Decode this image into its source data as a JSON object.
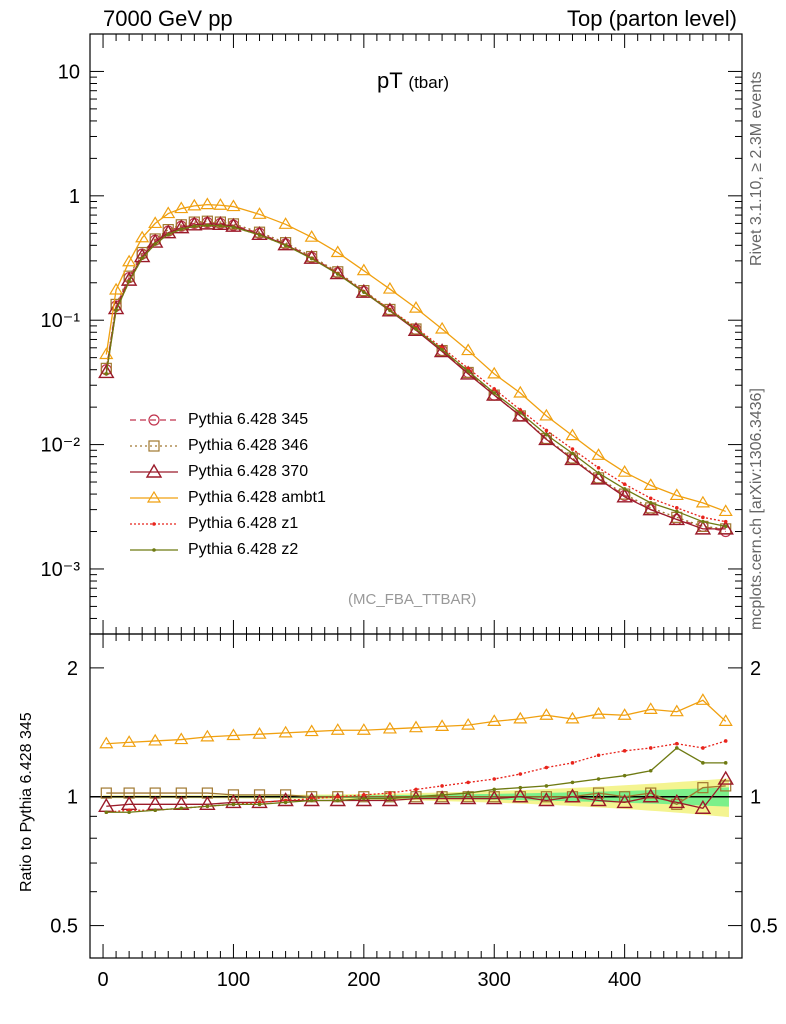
{
  "header": {
    "left": "7000 GeV pp",
    "right": "Top (parton level)"
  },
  "side_labels": {
    "rivet": "Rivet 3.1.10, ≥ 2.3M events",
    "mcplots": "mcplots.cern.ch [arXiv:1306.3436]"
  },
  "plot_title": {
    "main": "pT",
    "sub": "(tbar)"
  },
  "analysis_name": "(MC_FBA_TTBAR)",
  "colors": {
    "p345": "#c0334d",
    "p346": "#a07830",
    "p370": "#9b1b2a",
    "ambt1": "#f0a010",
    "z1": "#e8241c",
    "z2": "#6e7a12",
    "band_green": "#7cf08a",
    "band_yellow": "#f4f490"
  },
  "chart_data": [
    {
      "type": "line",
      "name": "main",
      "yscale": "log",
      "xlim": [
        -10,
        490
      ],
      "ylim": [
        0.0003,
        20
      ],
      "ytick_labels": [
        "10",
        "1",
        "10⁻¹",
        "10⁻²",
        "10⁻³"
      ],
      "ytick_values": [
        10,
        1,
        0.1,
        0.01,
        0.001
      ],
      "series": [
        {
          "name": "Pythia 6.428 345",
          "key": "p345",
          "marker": "circle",
          "dash": "6,4",
          "x": [
            2.5,
            10,
            20,
            30,
            40,
            50,
            60,
            70,
            80,
            90,
            100,
            120,
            140,
            160,
            180,
            200,
            220,
            240,
            260,
            280,
            300,
            320,
            340,
            360,
            380,
            400,
            420,
            440,
            460,
            477.5
          ],
          "y": [
            0.04,
            0.13,
            0.22,
            0.34,
            0.44,
            0.52,
            0.57,
            0.6,
            0.61,
            0.6,
            0.58,
            0.5,
            0.41,
            0.32,
            0.24,
            0.17,
            0.12,
            0.084,
            0.057,
            0.038,
            0.025,
            0.017,
            0.011,
            0.0077,
            0.0053,
            0.0039,
            0.003,
            0.0025,
            0.0022,
            0.002
          ]
        },
        {
          "name": "Pythia 6.428 346",
          "key": "p346",
          "marker": "square",
          "dash": "2,3",
          "x": [
            2.5,
            10,
            20,
            30,
            40,
            50,
            60,
            70,
            80,
            90,
            100,
            120,
            140,
            160,
            180,
            200,
            220,
            240,
            260,
            280,
            300,
            320,
            340,
            360,
            380,
            400,
            420,
            440,
            460,
            477.5
          ],
          "y": [
            0.041,
            0.134,
            0.226,
            0.35,
            0.45,
            0.535,
            0.585,
            0.615,
            0.625,
            0.615,
            0.595,
            0.51,
            0.42,
            0.325,
            0.245,
            0.173,
            0.122,
            0.085,
            0.057,
            0.038,
            0.025,
            0.017,
            0.0112,
            0.0078,
            0.0054,
            0.004,
            0.0031,
            0.0026,
            0.0022,
            0.0021
          ]
        },
        {
          "name": "Pythia 6.428 370",
          "key": "p370",
          "marker": "triangle",
          "dash": "",
          "x": [
            2.5,
            10,
            20,
            30,
            40,
            50,
            60,
            70,
            80,
            90,
            100,
            120,
            140,
            160,
            180,
            200,
            220,
            240,
            260,
            280,
            300,
            320,
            340,
            360,
            380,
            400,
            420,
            440,
            460,
            477.5
          ],
          "y": [
            0.038,
            0.124,
            0.21,
            0.325,
            0.425,
            0.505,
            0.555,
            0.585,
            0.595,
            0.59,
            0.57,
            0.49,
            0.405,
            0.315,
            0.237,
            0.168,
            0.119,
            0.083,
            0.056,
            0.037,
            0.025,
            0.017,
            0.011,
            0.0076,
            0.0053,
            0.0038,
            0.003,
            0.0025,
            0.0021,
            0.0021
          ]
        },
        {
          "name": "Pythia 6.428 ambt1",
          "key": "ambt1",
          "marker": "triangle-open-light",
          "dash": "",
          "x": [
            2.5,
            10,
            20,
            30,
            40,
            50,
            60,
            70,
            80,
            90,
            100,
            120,
            140,
            160,
            180,
            200,
            220,
            240,
            260,
            280,
            300,
            320,
            340,
            360,
            380,
            400,
            420,
            440,
            460,
            477.5
          ],
          "y": [
            0.053,
            0.175,
            0.295,
            0.46,
            0.6,
            0.72,
            0.79,
            0.83,
            0.85,
            0.84,
            0.82,
            0.71,
            0.59,
            0.465,
            0.35,
            0.25,
            0.178,
            0.125,
            0.085,
            0.057,
            0.037,
            0.026,
            0.017,
            0.0118,
            0.0082,
            0.006,
            0.0047,
            0.0039,
            0.0034,
            0.0029
          ]
        },
        {
          "name": "Pythia 6.428 z1",
          "key": "z1",
          "marker": "dot",
          "dash": "2,2",
          "x": [
            2.5,
            10,
            20,
            30,
            40,
            50,
            60,
            70,
            80,
            90,
            100,
            120,
            140,
            160,
            180,
            200,
            220,
            240,
            260,
            280,
            300,
            320,
            340,
            360,
            380,
            400,
            420,
            440,
            460,
            477.5
          ],
          "y": [
            0.037,
            0.12,
            0.205,
            0.315,
            0.41,
            0.49,
            0.54,
            0.57,
            0.58,
            0.575,
            0.56,
            0.485,
            0.4,
            0.315,
            0.238,
            0.17,
            0.122,
            0.087,
            0.06,
            0.041,
            0.028,
            0.019,
            0.013,
            0.0092,
            0.0065,
            0.0048,
            0.0037,
            0.0031,
            0.0026,
            0.0024
          ]
        },
        {
          "name": "Pythia 6.428 z2",
          "key": "z2",
          "marker": "dot",
          "dash": "",
          "x": [
            2.5,
            10,
            20,
            30,
            40,
            50,
            60,
            70,
            80,
            90,
            100,
            120,
            140,
            160,
            180,
            200,
            220,
            240,
            260,
            280,
            300,
            320,
            340,
            360,
            380,
            400,
            420,
            440,
            460,
            477.5
          ],
          "y": [
            0.037,
            0.12,
            0.205,
            0.315,
            0.41,
            0.49,
            0.54,
            0.57,
            0.58,
            0.575,
            0.56,
            0.485,
            0.4,
            0.313,
            0.235,
            0.168,
            0.12,
            0.085,
            0.058,
            0.039,
            0.026,
            0.018,
            0.012,
            0.0085,
            0.0059,
            0.0044,
            0.0034,
            0.0029,
            0.0024,
            0.0022
          ]
        }
      ]
    },
    {
      "type": "line",
      "name": "ratio",
      "ylabel": "Ratio to Pythia 6.428 345",
      "yscale": "log",
      "xlim": [
        -10,
        490
      ],
      "ylim": [
        0.42,
        2.4
      ],
      "xtick_values": [
        0,
        100,
        200,
        300,
        400
      ],
      "ytick_values": [
        0.5,
        1,
        2
      ],
      "ytick_labels": [
        "0.5",
        "1",
        "2"
      ],
      "series": [
        {
          "key": "p346",
          "marker": "square",
          "x": [
            2.5,
            20,
            40,
            60,
            80,
            100,
            120,
            140,
            160,
            180,
            200,
            220,
            240,
            260,
            280,
            300,
            320,
            340,
            360,
            380,
            400,
            420,
            440,
            460,
            477.5
          ],
          "y": [
            1.02,
            1.02,
            1.02,
            1.02,
            1.02,
            1.01,
            1.01,
            1.01,
            1.0,
            1.0,
            1.0,
            1.0,
            1.0,
            1.0,
            1.0,
            1.0,
            1.0,
            1.0,
            1.0,
            1.02,
            1.0,
            1.02,
            0.96,
            1.05,
            1.06
          ]
        },
        {
          "key": "p370",
          "marker": "triangle",
          "x": [
            2.5,
            20,
            40,
            60,
            80,
            100,
            120,
            140,
            160,
            180,
            200,
            220,
            240,
            260,
            280,
            300,
            320,
            340,
            360,
            380,
            400,
            420,
            440,
            460,
            477.5
          ],
          "y": [
            0.95,
            0.96,
            0.96,
            0.96,
            0.96,
            0.97,
            0.97,
            0.98,
            0.98,
            0.98,
            0.98,
            0.98,
            0.99,
            0.99,
            0.99,
            0.99,
            1.0,
            0.98,
            1.0,
            0.98,
            0.97,
            1.0,
            0.97,
            0.94,
            1.1
          ]
        },
        {
          "key": "ambt1",
          "marker": "triangle-open-light",
          "x": [
            2.5,
            20,
            40,
            60,
            80,
            100,
            120,
            140,
            160,
            180,
            200,
            220,
            240,
            260,
            280,
            300,
            320,
            340,
            360,
            380,
            400,
            420,
            440,
            460,
            477.5
          ],
          "y": [
            1.33,
            1.34,
            1.35,
            1.36,
            1.38,
            1.39,
            1.4,
            1.41,
            1.42,
            1.43,
            1.43,
            1.44,
            1.45,
            1.46,
            1.47,
            1.5,
            1.52,
            1.55,
            1.52,
            1.56,
            1.55,
            1.6,
            1.58,
            1.68,
            1.5
          ]
        },
        {
          "key": "z1",
          "marker": "dot",
          "dash": "2,2",
          "x": [
            2.5,
            20,
            40,
            60,
            80,
            100,
            120,
            140,
            160,
            180,
            200,
            220,
            240,
            260,
            280,
            300,
            320,
            340,
            360,
            380,
            400,
            420,
            440,
            460,
            477.5
          ],
          "y": [
            0.92,
            0.93,
            0.93,
            0.94,
            0.95,
            0.96,
            0.97,
            0.98,
            0.99,
            1.0,
            1.01,
            1.02,
            1.04,
            1.06,
            1.08,
            1.1,
            1.13,
            1.17,
            1.2,
            1.25,
            1.28,
            1.3,
            1.33,
            1.3,
            1.35
          ]
        },
        {
          "key": "z2",
          "marker": "dot",
          "dash": "",
          "x": [
            2.5,
            20,
            40,
            60,
            80,
            100,
            120,
            140,
            160,
            180,
            200,
            220,
            240,
            260,
            280,
            300,
            320,
            340,
            360,
            380,
            400,
            420,
            440,
            460,
            477.5
          ],
          "y": [
            0.92,
            0.92,
            0.93,
            0.94,
            0.95,
            0.96,
            0.96,
            0.97,
            0.98,
            0.98,
            0.99,
            0.99,
            1.0,
            1.01,
            1.02,
            1.04,
            1.05,
            1.06,
            1.08,
            1.1,
            1.12,
            1.15,
            1.3,
            1.2,
            1.2
          ]
        }
      ]
    }
  ]
}
